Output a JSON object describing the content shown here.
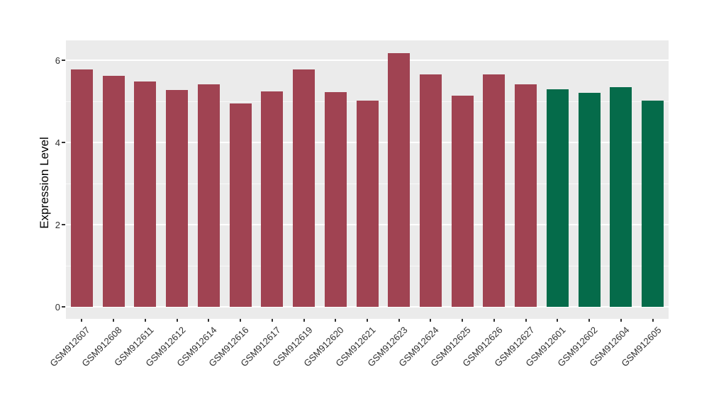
{
  "chart_data": {
    "type": "bar",
    "title": "",
    "xlabel": "",
    "ylabel": "Expression Level",
    "categories": [
      "GSM912607",
      "GSM912608",
      "GSM912611",
      "GSM912612",
      "GSM912614",
      "GSM912616",
      "GSM912617",
      "GSM912619",
      "GSM912620",
      "GSM912621",
      "GSM912623",
      "GSM912624",
      "GSM912625",
      "GSM912626",
      "GSM912627",
      "GSM912601",
      "GSM912602",
      "GSM912604",
      "GSM912605"
    ],
    "values": [
      5.78,
      5.62,
      5.48,
      5.28,
      5.41,
      4.95,
      5.24,
      5.77,
      5.22,
      5.01,
      6.17,
      5.66,
      5.14,
      5.65,
      5.42,
      5.3,
      5.2,
      5.34,
      5.02
    ],
    "bar_groups": [
      "red",
      "red",
      "red",
      "red",
      "red",
      "red",
      "red",
      "red",
      "red",
      "red",
      "red",
      "red",
      "red",
      "red",
      "red",
      "green",
      "green",
      "green",
      "green"
    ],
    "group_colors": {
      "red": "#A04352",
      "green": "#056B4A"
    },
    "yticks": [
      0,
      2,
      4,
      6
    ],
    "yticks_minor": [
      1,
      3,
      5
    ],
    "ylim": [
      0,
      6.5
    ],
    "grid": "on",
    "legend": "none",
    "panel_background": "#EBEBEB",
    "grid_color": "#FFFFFF",
    "tick_text_color": "#303030",
    "axis_title_color": "#000000"
  }
}
